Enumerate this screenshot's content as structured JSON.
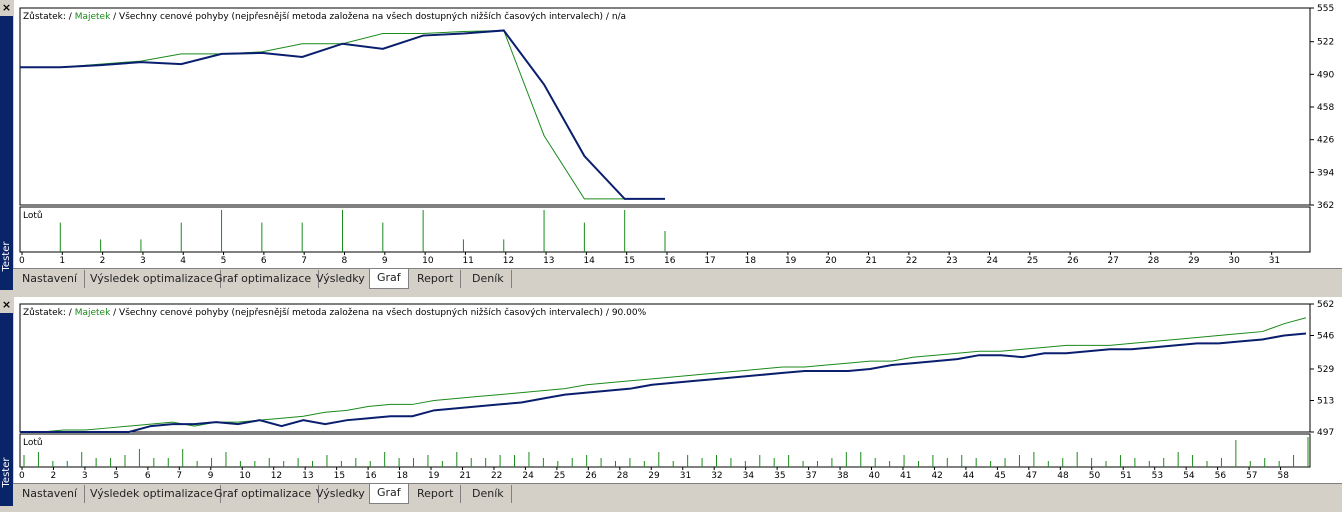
{
  "sidebar": {
    "label": "Tester",
    "close": "×"
  },
  "tabs": [
    "Nastavení",
    "Výsledek optimalizace",
    "Graf optimalizace",
    "Výsledky",
    "Graf",
    "Report",
    "Deník"
  ],
  "active_tab": "Graf",
  "charts": [
    {
      "legend": {
        "zustatek": "Zůstatek:",
        "sep1": " / ",
        "majetek": "Majetek",
        "rest": " / Všechny cenové pohyby (nejpřesnější metoda založena na všech dostupných nižších časových intervalech) / n/a"
      },
      "lots_label": "Lotů"
    },
    {
      "legend": {
        "zustatek": "Zůstatek:",
        "sep1": " / ",
        "majetek": "Majetek",
        "rest": " / Všechny cenové pohyby (nejpřesnější metoda založena na všech dostupných nižších časových intervalech) / 90.00%"
      },
      "lots_label": "Lotů"
    }
  ],
  "colors": {
    "balance": "#0a1e6e",
    "equity": "#1a8a1a",
    "lots": "#1a8a1a",
    "sidebar": "#0a246a"
  },
  "chart_data": [
    {
      "type": "line",
      "series": [
        {
          "name": "Zůstatek",
          "x": [
            0,
            1,
            2,
            3,
            4,
            5,
            6,
            7,
            8,
            9,
            10,
            11,
            12,
            13,
            14,
            15,
            16
          ],
          "values": [
            497,
            497,
            499,
            502,
            500,
            510,
            511,
            507,
            520,
            515,
            528,
            530,
            533,
            480,
            410,
            368,
            368
          ]
        },
        {
          "name": "Majetek",
          "x": [
            0,
            1,
            2,
            3,
            4,
            5,
            6,
            7,
            8,
            9,
            10,
            11,
            12,
            13,
            14,
            15,
            16
          ],
          "values": [
            497,
            497,
            500,
            503,
            510,
            510,
            512,
            520,
            520,
            530,
            530,
            532,
            533,
            430,
            368,
            368,
            368
          ]
        }
      ],
      "ylim": [
        362,
        555
      ],
      "yticks": [
        555,
        522,
        490,
        458,
        426,
        394,
        362
      ],
      "xticks": [
        0,
        1,
        2,
        3,
        4,
        5,
        6,
        7,
        8,
        9,
        10,
        11,
        12,
        13,
        14,
        15,
        16,
        17,
        18,
        19,
        20,
        21,
        22,
        23,
        24,
        25,
        26,
        27,
        28,
        29,
        30,
        31
      ],
      "lots": [
        0.7,
        0.3,
        0.3,
        0.7,
        1.0,
        0.7,
        0.7,
        1.0,
        0.7,
        1.0,
        0.3,
        0.3,
        1.0,
        0.7,
        1.0,
        0.5
      ]
    },
    {
      "type": "line",
      "series": [
        {
          "name": "Zůstatek",
          "x": [
            0,
            1,
            2,
            3,
            4,
            5,
            6,
            7,
            8,
            9,
            10,
            11,
            12,
            13,
            14,
            15,
            16,
            17,
            18,
            19,
            20,
            21,
            22,
            23,
            24,
            25,
            26,
            27,
            28,
            29,
            30,
            31,
            32,
            33,
            34,
            35,
            36,
            37,
            38,
            39,
            40,
            41,
            42,
            43,
            44,
            45,
            46,
            47,
            48,
            49,
            50,
            51,
            52,
            53,
            54,
            55,
            56,
            57,
            58,
            59
          ],
          "values": [
            497,
            497,
            497,
            497,
            497,
            497,
            500,
            501,
            501,
            502,
            501,
            503,
            500,
            503,
            501,
            503,
            504,
            505,
            505,
            508,
            509,
            510,
            511,
            512,
            514,
            516,
            517,
            518,
            519,
            521,
            522,
            523,
            524,
            525,
            526,
            527,
            528,
            528,
            528,
            529,
            531,
            532,
            533,
            534,
            536,
            536,
            535,
            537,
            537,
            538,
            539,
            539,
            540,
            541,
            542,
            542,
            543,
            544,
            546,
            547
          ]
        },
        {
          "name": "Majetek",
          "x": [
            0,
            1,
            2,
            3,
            4,
            5,
            6,
            7,
            8,
            9,
            10,
            11,
            12,
            13,
            14,
            15,
            16,
            17,
            18,
            19,
            20,
            21,
            22,
            23,
            24,
            25,
            26,
            27,
            28,
            29,
            30,
            31,
            32,
            33,
            34,
            35,
            36,
            37,
            38,
            39,
            40,
            41,
            42,
            43,
            44,
            45,
            46,
            47,
            48,
            49,
            50,
            51,
            52,
            53,
            54,
            55,
            56,
            57,
            58,
            59
          ],
          "values": [
            497,
            497,
            498,
            498,
            499,
            500,
            501,
            502,
            500,
            502,
            502,
            503,
            504,
            505,
            507,
            508,
            510,
            511,
            511,
            513,
            514,
            515,
            516,
            517,
            518,
            519,
            521,
            522,
            523,
            524,
            525,
            526,
            527,
            528,
            529,
            530,
            530,
            531,
            532,
            533,
            533,
            535,
            536,
            537,
            538,
            538,
            539,
            540,
            541,
            541,
            541,
            542,
            543,
            544,
            545,
            546,
            547,
            548,
            552,
            555
          ]
        }
      ],
      "ylim": [
        497,
        562
      ],
      "yticks": [
        562,
        546,
        529,
        513,
        497
      ],
      "xticks": [
        0,
        2,
        3,
        5,
        6,
        7,
        9,
        10,
        12,
        13,
        15,
        16,
        18,
        19,
        21,
        22,
        24,
        25,
        26,
        28,
        29,
        31,
        32,
        34,
        35,
        37,
        38,
        40,
        41,
        42,
        44,
        45,
        47,
        48,
        50,
        51,
        53,
        54,
        56,
        57,
        58
      ],
      "lots": [
        0.4,
        0.5,
        0.2,
        0.2,
        0.5,
        0.3,
        0.3,
        0.4,
        0.6,
        0.3,
        0.3,
        0.6,
        0.2,
        0.3,
        0.5,
        0.2,
        0.2,
        0.3,
        0.2,
        0.3,
        0.2,
        0.4,
        0.2,
        0.3,
        0.2,
        0.5,
        0.3,
        0.3,
        0.4,
        0.2,
        0.5,
        0.3,
        0.3,
        0.4,
        0.4,
        0.5,
        0.3,
        0.2,
        0.3,
        0.4,
        0.3,
        0.2,
        0.3,
        0.2,
        0.5,
        0.2,
        0.4,
        0.3,
        0.4,
        0.3,
        0.2,
        0.4,
        0.3,
        0.4,
        0.2,
        0.2,
        0.3,
        0.5,
        0.5,
        0.3,
        0.2,
        0.4,
        0.2,
        0.4,
        0.3,
        0.4,
        0.3,
        0.2,
        0.3,
        0.4,
        0.5,
        0.2,
        0.3,
        0.5,
        0.3,
        0.2,
        0.4,
        0.3,
        0.2,
        0.3,
        0.5,
        0.4,
        0.2,
        0.3,
        0.9,
        0.2,
        0.3,
        0.2,
        0.4,
        1.0
      ]
    }
  ]
}
